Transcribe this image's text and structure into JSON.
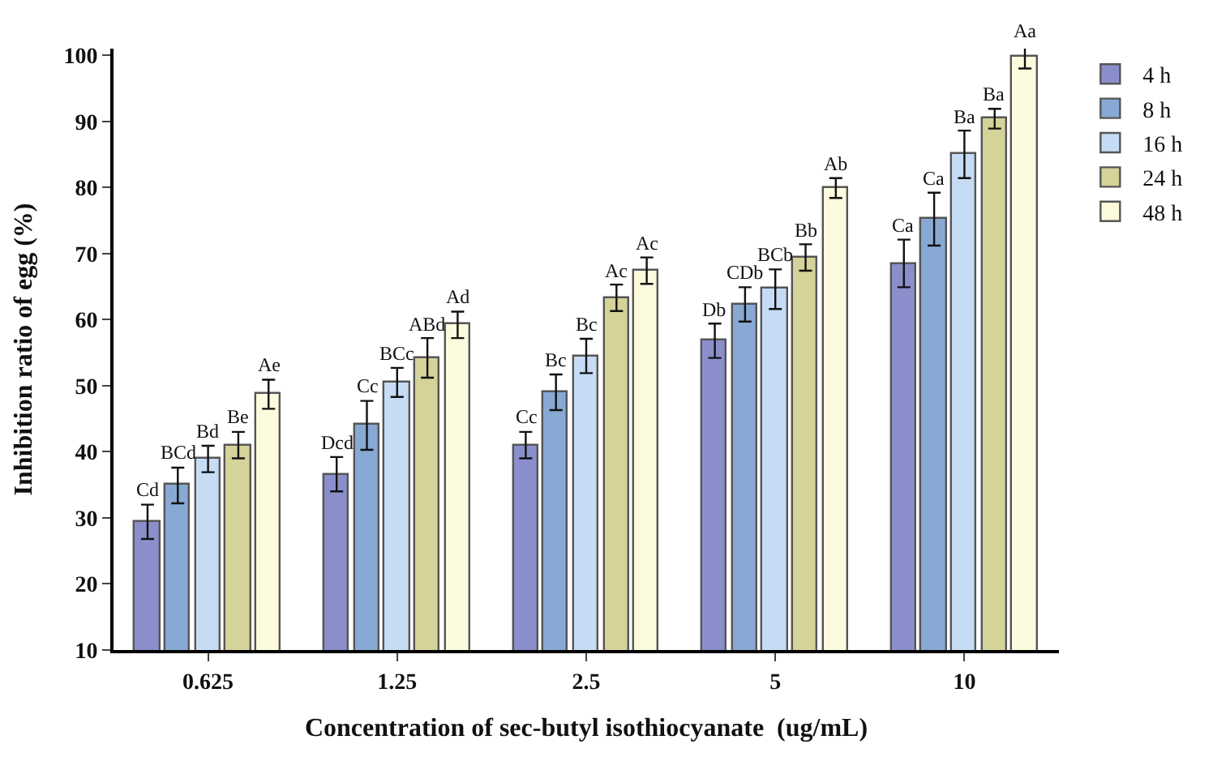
{
  "chart_data": {
    "type": "bar",
    "xlabel": "Concentration of sec-butyl isothiocyanate  (ug/mL)",
    "ylabel": "Inhibition ratio of egg (%)",
    "categories": [
      "0.625",
      "1.25",
      "2.5",
      "5",
      "10"
    ],
    "series": [
      {
        "name": "4 h",
        "color": "#8a8fcc",
        "values": [
          29.4,
          36.6,
          41.0,
          56.8,
          68.5
        ],
        "errors": [
          2.6,
          2.6,
          2.0,
          2.6,
          3.6
        ],
        "value_labels": [
          "Cd",
          "Dcd",
          "Cc",
          "Db",
          "Ca"
        ]
      },
      {
        "name": "8 h",
        "color": "#87a9d4",
        "values": [
          34.9,
          44.0,
          49.0,
          62.3,
          75.2
        ],
        "errors": [
          2.7,
          3.7,
          2.7,
          2.6,
          4.0
        ],
        "value_labels": [
          "BCd",
          "Cc",
          "Bc",
          "CDb",
          "Ca"
        ]
      },
      {
        "name": "16 h",
        "color": "#c6dcf5",
        "values": [
          38.9,
          50.5,
          54.5,
          64.6,
          85.0
        ],
        "errors": [
          2.0,
          2.2,
          2.6,
          3.0,
          3.6
        ],
        "value_labels": [
          "Bd",
          "BCc",
          "Bc",
          "BCb",
          "Ba"
        ]
      },
      {
        "name": "24 h",
        "color": "#d5d29a",
        "values": [
          41.0,
          54.2,
          63.3,
          69.4,
          90.4
        ],
        "errors": [
          2.0,
          3.0,
          2.0,
          2.0,
          1.5
        ],
        "value_labels": [
          "Be",
          "ABd",
          "Ac",
          "Bb",
          "Ba"
        ]
      },
      {
        "name": "48 h",
        "color": "#fdfbde",
        "values": [
          48.7,
          59.2,
          67.4,
          79.9,
          99.8
        ],
        "errors": [
          2.2,
          2.0,
          2.0,
          1.5,
          1.8
        ],
        "value_labels": [
          "Ae",
          "Ad",
          "Ac",
          "Ab",
          "Aa"
        ]
      }
    ],
    "ylim": [
      10,
      101
    ],
    "yticks": [
      10,
      20,
      30,
      40,
      50,
      60,
      70,
      80,
      90,
      100
    ],
    "legend": "top right"
  }
}
